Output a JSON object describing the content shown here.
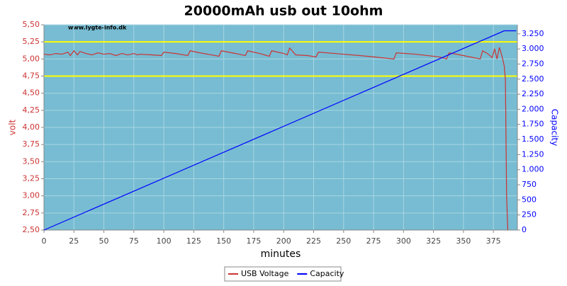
{
  "chart_data": {
    "type": "line",
    "title": "20000mAh usb out 10ohm",
    "watermark": "www.lygte-info.dk",
    "xlabel": "minutes",
    "ylabel": "volt",
    "y2label": "Capacity",
    "xlim": [
      0,
      395
    ],
    "ylim": [
      2.5,
      5.5
    ],
    "y2lim": [
      0,
      3400
    ],
    "xticks": [
      0,
      25,
      50,
      75,
      100,
      125,
      150,
      175,
      200,
      225,
      250,
      275,
      300,
      325,
      350,
      375
    ],
    "yticks": [
      {
        "value": 2.5,
        "label": "2,50"
      },
      {
        "value": 2.75,
        "label": "2,75"
      },
      {
        "value": 3.0,
        "label": "3,00"
      },
      {
        "value": 3.25,
        "label": "3,25"
      },
      {
        "value": 3.5,
        "label": "3,50"
      },
      {
        "value": 3.75,
        "label": "3,75"
      },
      {
        "value": 4.0,
        "label": "4,00"
      },
      {
        "value": 4.25,
        "label": "4,25"
      },
      {
        "value": 4.5,
        "label": "4,50"
      },
      {
        "value": 4.75,
        "label": "4,75"
      },
      {
        "value": 5.0,
        "label": "5,00"
      },
      {
        "value": 5.25,
        "label": "5,25"
      },
      {
        "value": 5.5,
        "label": "5,50"
      }
    ],
    "y2ticks": [
      0,
      250,
      500,
      750,
      {
        "value": 1000,
        "label": "1.000"
      },
      {
        "value": 1250,
        "label": "1.250"
      },
      {
        "value": 1500,
        "label": "1.500"
      },
      {
        "value": 1750,
        "label": "1.750"
      },
      {
        "value": 2000,
        "label": "2.000"
      },
      {
        "value": 2250,
        "label": "2.250"
      },
      {
        "value": 2500,
        "label": "2.500"
      },
      {
        "value": 2750,
        "label": "2.750"
      },
      {
        "value": 3000,
        "label": "3.000"
      },
      {
        "value": 3250,
        "label": "3.250"
      }
    ],
    "grid": true,
    "reference_lines": [
      {
        "value": 5.25,
        "color": "#ffff00"
      },
      {
        "value": 4.75,
        "color": "#ffff00"
      }
    ],
    "series": [
      {
        "name": "USB Voltage",
        "color": "#cc3333",
        "x": [
          0,
          5,
          10,
          15,
          20,
          22,
          25,
          28,
          30,
          35,
          40,
          45,
          50,
          55,
          60,
          65,
          70,
          75,
          78,
          80,
          90,
          98,
          100,
          110,
          120,
          122,
          130,
          140,
          146,
          148,
          160,
          168,
          170,
          180,
          188,
          190,
          200,
          203,
          205,
          210,
          220,
          227,
          229,
          250,
          270,
          292,
          294,
          310,
          330,
          336,
          338,
          350,
          364,
          366,
          370,
          374,
          376,
          378,
          380,
          382,
          384,
          385,
          386,
          387
        ],
        "values": [
          5.07,
          5.06,
          5.08,
          5.07,
          5.1,
          5.05,
          5.12,
          5.06,
          5.11,
          5.08,
          5.06,
          5.09,
          5.07,
          5.08,
          5.05,
          5.08,
          5.06,
          5.08,
          5.06,
          5.07,
          5.06,
          5.05,
          5.1,
          5.08,
          5.05,
          5.12,
          5.09,
          5.06,
          5.04,
          5.12,
          5.08,
          5.05,
          5.12,
          5.08,
          5.04,
          5.12,
          5.08,
          5.06,
          5.16,
          5.06,
          5.05,
          5.03,
          5.1,
          5.07,
          5.04,
          5.0,
          5.09,
          5.07,
          5.03,
          5.0,
          5.09,
          5.05,
          5.0,
          5.12,
          5.08,
          5.02,
          5.15,
          5.0,
          5.17,
          5.05,
          4.9,
          4.7,
          3.0,
          2.5
        ]
      },
      {
        "name": "Capacity",
        "color": "#0000ff",
        "axis": "y2",
        "x": [
          0,
          384,
          394
        ],
        "values": [
          0,
          3300,
          3300
        ]
      }
    ]
  }
}
